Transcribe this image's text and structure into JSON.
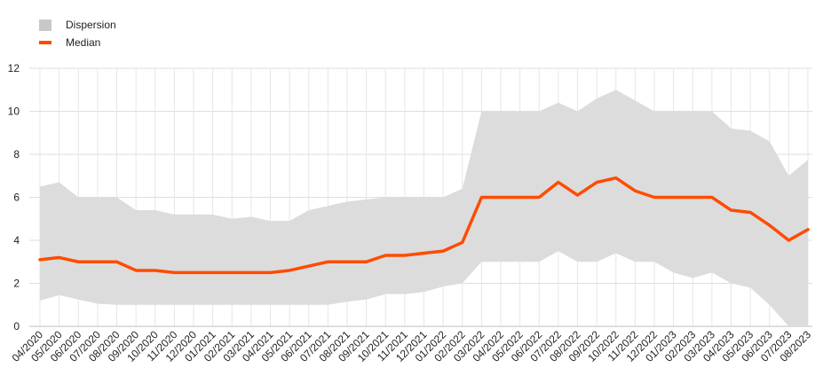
{
  "chart_data": {
    "type": "area",
    "legend": [
      "Dispersion",
      "Median"
    ],
    "legend_position": "top-left",
    "categories": [
      "04/2020",
      "05/2020",
      "06/2020",
      "07/2020",
      "08/2020",
      "09/2020",
      "10/2020",
      "11/2020",
      "12/2020",
      "01/2021",
      "02/2021",
      "03/2021",
      "04/2021",
      "05/2021",
      "06/2021",
      "07/2021",
      "08/2021",
      "09/2021",
      "10/2021",
      "11/2021",
      "12/2021",
      "01/2022",
      "02/2022",
      "03/2022",
      "04/2022",
      "05/2022",
      "06/2022",
      "07/2022",
      "08/2022",
      "09/2022",
      "10/2022",
      "11/2022",
      "12/2022",
      "01/2023",
      "02/2023",
      "03/2023",
      "04/2023",
      "05/2023",
      "06/2023",
      "07/2023",
      "08/2023"
    ],
    "ylim": [
      0,
      12
    ],
    "yticks": [
      0,
      2,
      4,
      6,
      8,
      10,
      12
    ],
    "grid": true,
    "series": [
      {
        "name": "Dispersion",
        "kind": "band",
        "color": "#dcdcdc",
        "low": [
          1.2,
          1.45,
          1.25,
          1.05,
          1,
          1,
          1,
          1,
          1,
          1,
          1,
          1,
          1,
          1,
          1,
          1,
          1.15,
          1.25,
          1.5,
          1.5,
          1.6,
          1.85,
          2,
          3,
          3,
          3,
          3,
          3.5,
          3,
          3,
          3.4,
          3,
          3,
          2.5,
          2.25,
          2.5,
          2,
          1.8,
          1,
          0,
          0
        ],
        "high": [
          6.5,
          6.7,
          6,
          6,
          6,
          5.4,
          5.4,
          5.2,
          5.2,
          5.2,
          5,
          5.1,
          4.9,
          4.9,
          5.4,
          5.6,
          5.8,
          5.9,
          6,
          6,
          6,
          6,
          6.4,
          10,
          10,
          10,
          10,
          10.4,
          10,
          10.6,
          11,
          10.5,
          10,
          10,
          10,
          10,
          9.2,
          9.1,
          8.6,
          7,
          7.75
        ]
      },
      {
        "name": "Median",
        "kind": "line",
        "color": "#ff4b00",
        "values": [
          3.1,
          3.2,
          3,
          3,
          3,
          2.6,
          2.6,
          2.5,
          2.5,
          2.5,
          2.5,
          2.5,
          2.5,
          2.6,
          2.8,
          3,
          3,
          3,
          3.3,
          3.3,
          3.4,
          3.5,
          3.9,
          6,
          6,
          6,
          6,
          6.7,
          6.1,
          6.7,
          6.9,
          6.3,
          6,
          6,
          6,
          6,
          5.4,
          5.3,
          4.7,
          4,
          4.5
        ]
      }
    ]
  }
}
